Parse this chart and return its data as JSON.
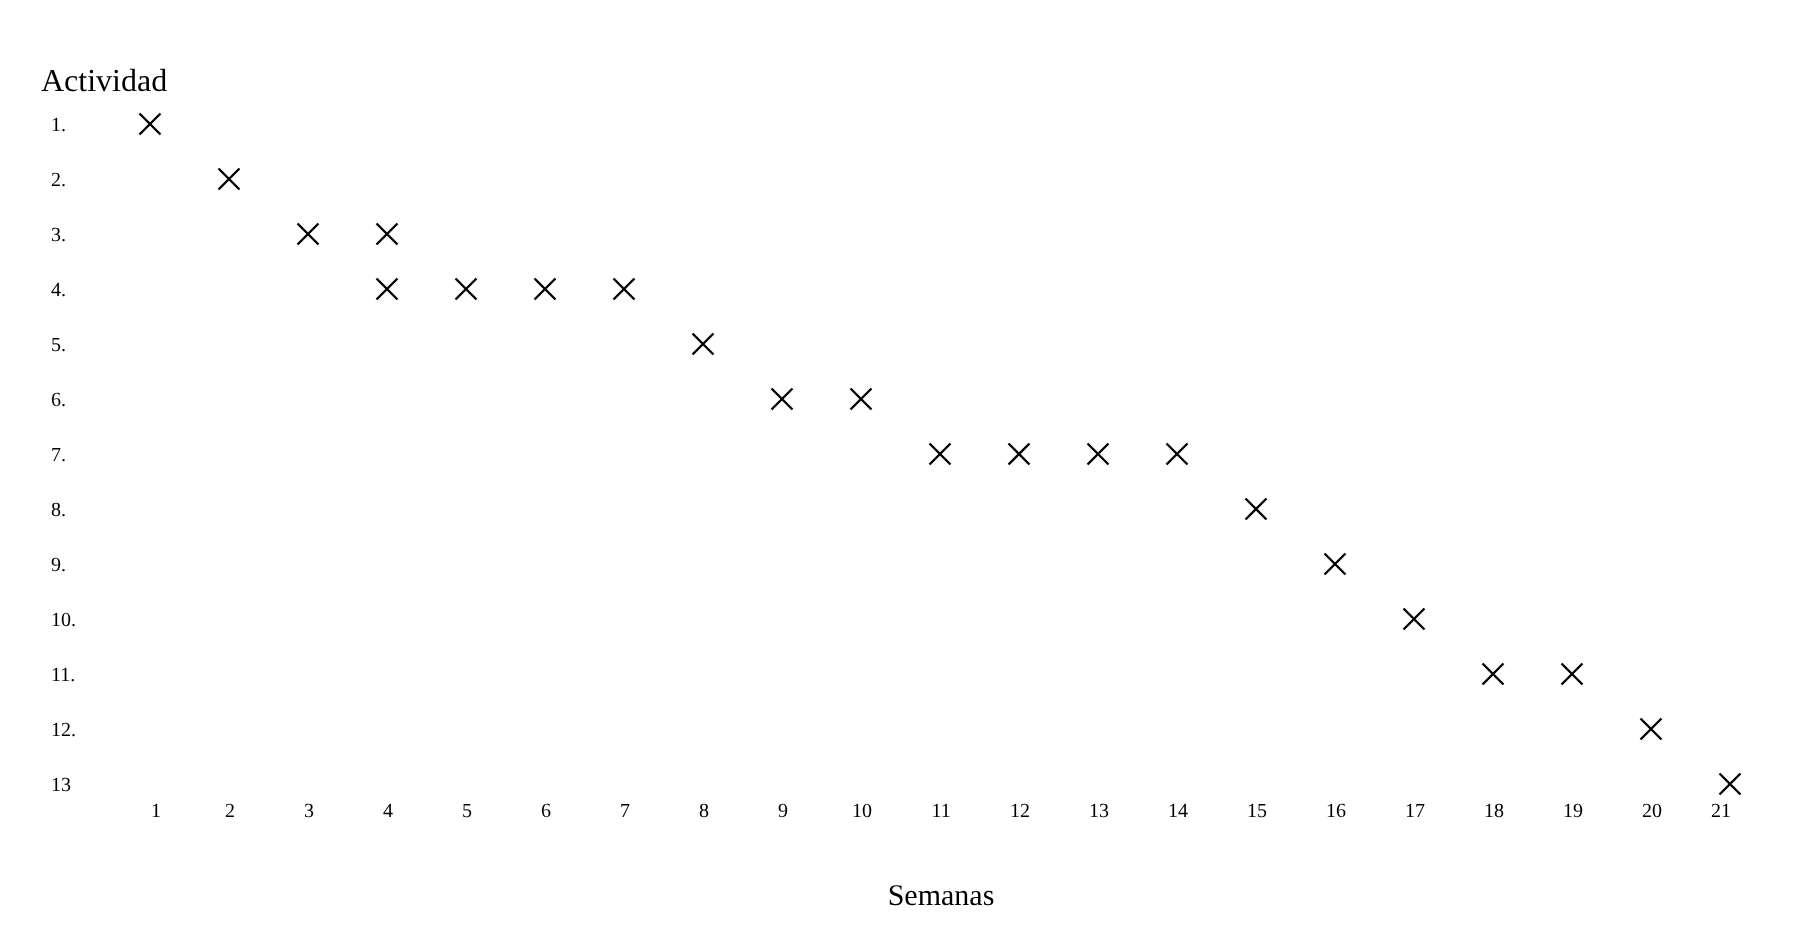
{
  "chart_data": {
    "type": "scatter",
    "xlabel": "Semanas",
    "ylabel": "Actividad",
    "series": [
      {
        "color": "#000000",
        "x": [
          1,
          2,
          3,
          4,
          4,
          5,
          6,
          7,
          8,
          9,
          10,
          11,
          12,
          13,
          14,
          15,
          16,
          17,
          18,
          19,
          20,
          21
        ],
        "values": [
          1,
          2,
          3,
          3,
          4,
          4,
          4,
          4,
          5,
          6,
          6,
          7,
          7,
          7,
          7,
          8,
          9,
          10,
          11,
          11,
          12,
          13
        ]
      }
    ],
    "xlim": [
      1,
      21
    ],
    "xticks": [
      1,
      2,
      3,
      4,
      5,
      6,
      7,
      8,
      9,
      10,
      11,
      12,
      13,
      14,
      15,
      16,
      17,
      18,
      19,
      20,
      21
    ],
    "ylim": [
      13,
      1
    ],
    "yticks": [
      {
        "value": 1,
        "label": "1."
      },
      {
        "value": 2,
        "label": "2."
      },
      {
        "value": 3,
        "label": "3."
      },
      {
        "value": 4,
        "label": "4."
      },
      {
        "value": 5,
        "label": "5."
      },
      {
        "value": 6,
        "label": "6."
      },
      {
        "value": 7,
        "label": "7."
      },
      {
        "value": 8,
        "label": "8."
      },
      {
        "value": 9,
        "label": "9."
      },
      {
        "value": 10,
        "label": "10."
      },
      {
        "value": 11,
        "label": "11."
      },
      {
        "value": 12,
        "label": "12."
      },
      {
        "value": 13,
        "label": "13"
      }
    ],
    "marker": "cross",
    "grid": false
  }
}
